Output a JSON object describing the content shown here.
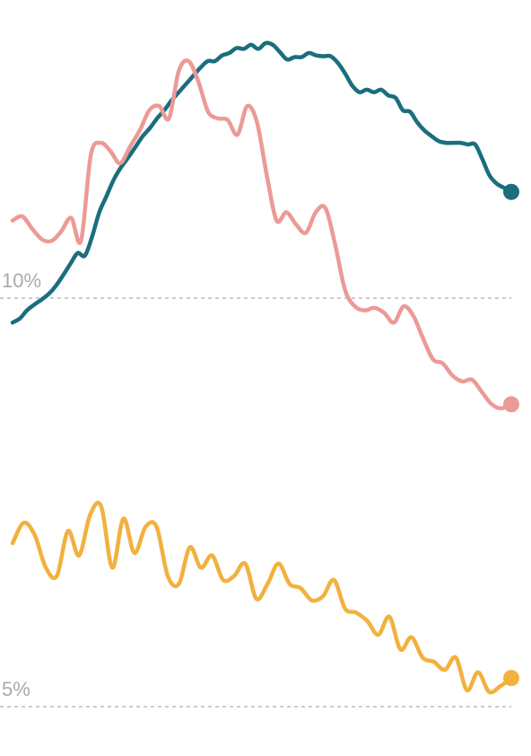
{
  "chart_data": {
    "type": "line",
    "grid": true,
    "legend": "none",
    "x": [
      1,
      2,
      3,
      4,
      5,
      6,
      7,
      8,
      9,
      10,
      11,
      12,
      13,
      14,
      15,
      16,
      17,
      18,
      19,
      20,
      21,
      22,
      23,
      24,
      25,
      26,
      27,
      28,
      29,
      30,
      31,
      32,
      33,
      34,
      35,
      36,
      37,
      38,
      39,
      40,
      41,
      42,
      43,
      44,
      45,
      46,
      47,
      48,
      49,
      50,
      51,
      52,
      53,
      54,
      55,
      56,
      57,
      58,
      59,
      60,
      61,
      62,
      63,
      64,
      65,
      66,
      67,
      68,
      69,
      70,
      71,
      72,
      73,
      74,
      75,
      76,
      77,
      78,
      79,
      80
    ],
    "ylim": [
      4.9,
      13.1
    ],
    "yticks": [
      {
        "value": 10,
        "label": "10%"
      },
      {
        "value": 5,
        "label": "5%"
      }
    ],
    "series": [
      {
        "color": "#1a6e7e",
        "values": [
          9.7,
          9.75,
          9.85,
          9.92,
          9.98,
          10.05,
          10.15,
          10.28,
          10.42,
          10.55,
          10.52,
          10.75,
          11.05,
          11.25,
          11.45,
          11.6,
          11.72,
          11.85,
          11.98,
          12.08,
          12.2,
          12.3,
          12.42,
          12.52,
          12.62,
          12.72,
          12.82,
          12.9,
          12.9,
          12.97,
          13.0,
          13.06,
          13.05,
          13.1,
          13.05,
          13.12,
          13.1,
          13.01,
          12.92,
          12.95,
          12.95,
          13.0,
          12.97,
          12.96,
          12.96,
          12.88,
          12.75,
          12.6,
          12.52,
          12.55,
          12.52,
          12.55,
          12.48,
          12.45,
          12.3,
          12.28,
          12.15,
          12.05,
          11.98,
          11.92,
          11.9,
          11.9,
          11.9,
          11.88,
          11.88,
          11.7,
          11.5,
          11.4,
          11.35,
          11.3
        ],
        "x": [
          1,
          2,
          3,
          4,
          5,
          6,
          7,
          8,
          9,
          10,
          11,
          12,
          13,
          14,
          15,
          16,
          17,
          18,
          19,
          20,
          21,
          22,
          23,
          24,
          25,
          26,
          27,
          28,
          29,
          30,
          31,
          32,
          33,
          34,
          35,
          36,
          37,
          38,
          39,
          40,
          41,
          42,
          43,
          44,
          45,
          46,
          47,
          48,
          49,
          50,
          51,
          52,
          53,
          54,
          55,
          56,
          57,
          58,
          59,
          60,
          61,
          62,
          63,
          64,
          65,
          66,
          67,
          68,
          69,
          70
        ]
      },
      {
        "color": "#ec9a97",
        "values": [
          10.95,
          11.0,
          10.85,
          10.72,
          10.7,
          10.82,
          10.98,
          10.7,
          11.75,
          11.9,
          11.8,
          11.65,
          11.85,
          12.05,
          12.3,
          12.35,
          12.2,
          12.78,
          12.9,
          12.65,
          12.28,
          12.2,
          12.18,
          12.0,
          12.35,
          12.15,
          11.5,
          10.95,
          11.05,
          10.9,
          10.8,
          11.05,
          11.1,
          10.65,
          10.1,
          9.9,
          9.85,
          9.88,
          9.82,
          9.7,
          9.9,
          9.78,
          9.5,
          9.25,
          9.2,
          9.05,
          8.98,
          9.0,
          8.85,
          8.7,
          8.65,
          8.7
        ],
        "x": [
          1,
          2,
          3,
          4,
          5,
          6,
          7,
          8,
          9,
          10,
          11,
          12,
          13,
          14,
          15,
          16,
          17,
          18,
          19,
          20,
          21,
          22,
          23,
          24,
          25,
          26,
          27,
          28,
          29,
          30,
          31,
          32,
          33,
          34,
          35,
          36,
          37,
          38,
          39,
          40,
          41,
          42,
          43,
          44,
          45,
          46,
          47,
          48,
          49,
          50,
          51,
          52
        ]
      },
      {
        "color": "#f2b13e",
        "values": [
          7.0,
          7.25,
          7.1,
          6.7,
          6.6,
          7.15,
          6.85,
          7.35,
          7.45,
          6.7,
          7.3,
          6.88,
          7.2,
          7.2,
          6.6,
          6.5,
          6.95,
          6.7,
          6.85,
          6.55,
          6.6,
          6.75,
          6.32,
          6.5,
          6.75,
          6.5,
          6.45,
          6.3,
          6.35,
          6.55,
          6.2,
          6.15,
          6.05,
          5.88,
          6.1,
          5.7,
          5.85,
          5.6,
          5.55,
          5.45,
          5.6,
          5.2,
          5.42,
          5.18,
          5.25,
          5.35
        ],
        "x": [
          1,
          2,
          3,
          4,
          5,
          6,
          7,
          8,
          9,
          10,
          11,
          12,
          13,
          14,
          15,
          16,
          17,
          18,
          19,
          20,
          21,
          22,
          23,
          24,
          25,
          26,
          27,
          28,
          29,
          30,
          31,
          32,
          33,
          34,
          35,
          36,
          37,
          38,
          39,
          40,
          41,
          42,
          43,
          44,
          45,
          46
        ]
      }
    ]
  }
}
